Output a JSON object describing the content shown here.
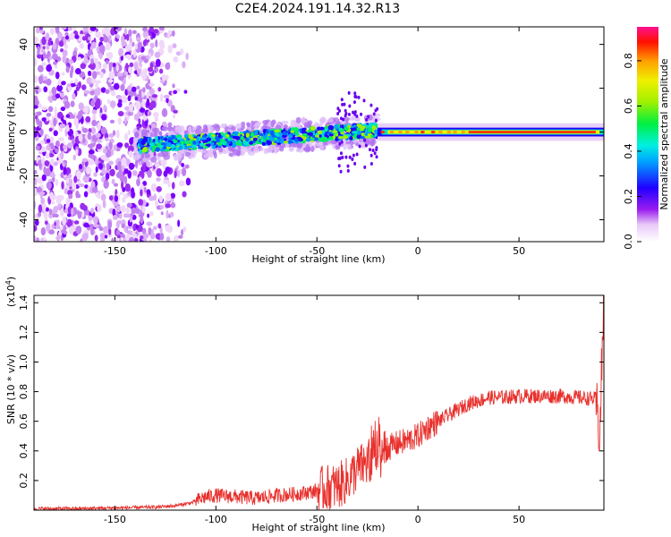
{
  "title": "C2E4.2024.191.14.32.R13",
  "chart_data": [
    {
      "type": "heatmap",
      "xlabel": "Height of straight line (km)",
      "ylabel": "Frequency (Hz)",
      "xlim": [
        -190,
        92
      ],
      "ylim": [
        -50,
        48
      ],
      "xticks": [
        "-150",
        "-100",
        "-50",
        "0",
        "50"
      ],
      "xtick_values": [
        -150,
        -100,
        -50,
        0,
        50
      ],
      "yticks": [
        "-40",
        "-20",
        "0",
        "20",
        "40"
      ],
      "ytick_values": [
        -40,
        -20,
        0,
        20,
        40
      ],
      "colorbar": {
        "label": "Normalized spectral amplitude",
        "ticks": [
          "0.0",
          "0.2",
          "0.4",
          "0.6",
          "0.8"
        ],
        "tick_values": [
          0.0,
          0.2,
          0.4,
          0.6,
          0.8
        ],
        "range": [
          0,
          0.95
        ]
      },
      "features": [
        {
          "region": "noise",
          "x_range": [
            -190,
            -115
          ],
          "freq_range": [
            -50,
            48
          ]
        },
        {
          "region": "dispersed_trace",
          "x_range": [
            -135,
            -20
          ],
          "freq_center": [
            -7,
            0
          ]
        },
        {
          "region": "narrow_trace",
          "x_range": [
            -20,
            92
          ],
          "freq": 0
        }
      ]
    },
    {
      "type": "line",
      "xlabel": "Height of straight line (km)",
      "ylabel": "SNR (10 * v/v)",
      "y_scale_label": "(x10",
      "y_scale_exp": "4",
      "y_scale_close": ")",
      "xlim": [
        -190,
        92
      ],
      "ylim": [
        0,
        1.45
      ],
      "xticks": [
        "-150",
        "-100",
        "-50",
        "0",
        "50"
      ],
      "xtick_values": [
        -150,
        -100,
        -50,
        0,
        50
      ],
      "yticks": [
        "0.2",
        "0.4",
        "0.6",
        "0.8",
        "1.0",
        "1.2",
        "1.4"
      ],
      "ytick_values": [
        0.2,
        0.4,
        0.6,
        0.8,
        1.0,
        1.2,
        1.4
      ],
      "line_color": "#e8302c",
      "series": [
        {
          "x": [
            -190,
            -170,
            -150,
            -130,
            -120,
            -112,
            -105,
            -100,
            -90,
            -80,
            -70,
            -60,
            -50,
            -45,
            -40,
            -35,
            -30,
            -25,
            -20,
            -15,
            -10,
            -5,
            0,
            5,
            10,
            15,
            20,
            25,
            30,
            35,
            40,
            50,
            60,
            70,
            80,
            88,
            90,
            91,
            92
          ],
          "y": [
            0.01,
            0.01,
            0.015,
            0.02,
            0.03,
            0.05,
            0.09,
            0.1,
            0.09,
            0.08,
            0.1,
            0.11,
            0.13,
            0.15,
            0.16,
            0.2,
            0.28,
            0.32,
            0.36,
            0.42,
            0.45,
            0.47,
            0.5,
            0.56,
            0.6,
            0.64,
            0.68,
            0.72,
            0.74,
            0.76,
            0.76,
            0.77,
            0.77,
            0.77,
            0.76,
            0.75,
            0.5,
            1.0,
            1.45
          ]
        }
      ]
    }
  ]
}
